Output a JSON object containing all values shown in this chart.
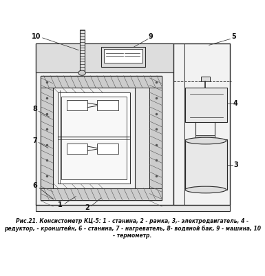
{
  "caption_line1": "Рис.21. Консистометр КЦ-5: 1 - станина, 2 - рамка, 3,- электродвигатель, 4 -",
  "caption_line2": "редуктор, - кронштейн, 6 - станина, 7 - нагреватель, 8- водяной бак, 9 - машина, 10",
  "caption_line3": "- термометр.",
  "bg_color": "#ffffff"
}
